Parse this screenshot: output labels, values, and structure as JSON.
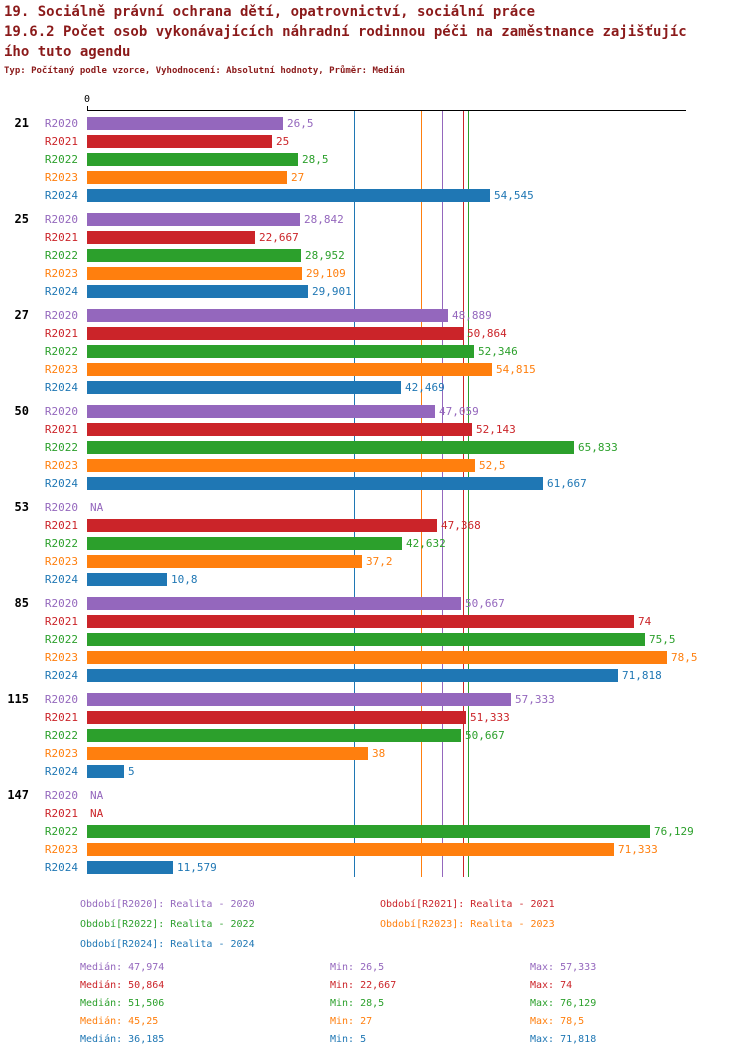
{
  "title": {
    "line1": "19. Sociálně právní ochrana dětí, opatrovnictví, sociální práce",
    "line2": "19.6.2 Počet osob vykonávajících náhradní rodinnou péči na zaměstnance zajišťujíc",
    "line3": "ího tuto agendu",
    "meta": "Typ: Počítaný podle vzorce, Vyhodnocení: Absolutní hodnoty, Průměr: Medián"
  },
  "colors": {
    "title": "#8b1a1a",
    "axis": "#000000",
    "R2020": "#9467bd",
    "R2021": "#cb2429",
    "R2022": "#2ca02c",
    "R2023": "#ff7f0e",
    "R2024": "#1f77b4"
  },
  "chart_data": {
    "type": "bar",
    "orientation": "horizontal",
    "value_axis": {
      "zero_label": "0",
      "min": 0,
      "max": 81,
      "position": "top",
      "grid": false
    },
    "na_label": "NA",
    "categories": [
      "21",
      "25",
      "27",
      "50",
      "53",
      "85",
      "115",
      "147"
    ],
    "series": [
      {
        "name": "R2020",
        "median": 47.974,
        "values": [
          26.5,
          28.842,
          48.889,
          47.059,
          null,
          50.667,
          57.333,
          null
        ],
        "labels": [
          "26,5",
          "28,842",
          "48,889",
          "47,059",
          "NA",
          "50,667",
          "57,333",
          "NA"
        ]
      },
      {
        "name": "R2021",
        "median": 50.864,
        "values": [
          25,
          22.667,
          50.864,
          52.143,
          47.368,
          74,
          51.333,
          null
        ],
        "labels": [
          "25",
          "22,667",
          "50,864",
          "52,143",
          "47,368",
          "74",
          "51,333",
          "NA"
        ]
      },
      {
        "name": "R2022",
        "median": 51.506,
        "values": [
          28.5,
          28.952,
          52.346,
          65.833,
          42.632,
          75.5,
          50.667,
          76.129
        ],
        "labels": [
          "28,5",
          "28,952",
          "52,346",
          "65,833",
          "42,632",
          "75,5",
          "50,667",
          "76,129"
        ]
      },
      {
        "name": "R2023",
        "median": 45.25,
        "values": [
          27,
          29.109,
          54.815,
          52.5,
          37.2,
          78.5,
          38,
          71.333
        ],
        "labels": [
          "27",
          "29,109",
          "54,815",
          "52,5",
          "37,2",
          "78,5",
          "38",
          "71,333"
        ]
      },
      {
        "name": "R2024",
        "median": 36.185,
        "values": [
          54.545,
          29.901,
          42.469,
          61.667,
          10.8,
          71.818,
          5,
          11.579
        ],
        "labels": [
          "54,545",
          "29,901",
          "42,469",
          "61,667",
          "10,8",
          "71,818",
          "5",
          "11,579"
        ]
      }
    ]
  },
  "legend": {
    "items": [
      {
        "series": "R2020",
        "text": "Období[R2020]: Realita - 2020"
      },
      {
        "series": "R2021",
        "text": "Období[R2021]: Realita - 2021"
      },
      {
        "series": "R2022",
        "text": "Období[R2022]: Realita - 2022"
      },
      {
        "series": "R2023",
        "text": "Období[R2023]: Realita - 2023"
      },
      {
        "series": "R2024",
        "text": "Období[R2024]: Realita - 2024"
      }
    ]
  },
  "stats": {
    "rows": [
      {
        "series": "R2020",
        "median": "Medián: 47,974",
        "min": "Min: 26,5",
        "max": "Max: 57,333"
      },
      {
        "series": "R2021",
        "median": "Medián: 50,864",
        "min": "Min: 22,667",
        "max": "Max: 74"
      },
      {
        "series": "R2022",
        "median": "Medián: 51,506",
        "min": "Min: 28,5",
        "max": "Max: 76,129"
      },
      {
        "series": "R2023",
        "median": "Medián: 45,25",
        "min": "Min: 27",
        "max": "Max: 78,5"
      },
      {
        "series": "R2024",
        "median": "Medián: 36,185",
        "min": "Min: 5",
        "max": "Max: 71,818"
      }
    ]
  }
}
